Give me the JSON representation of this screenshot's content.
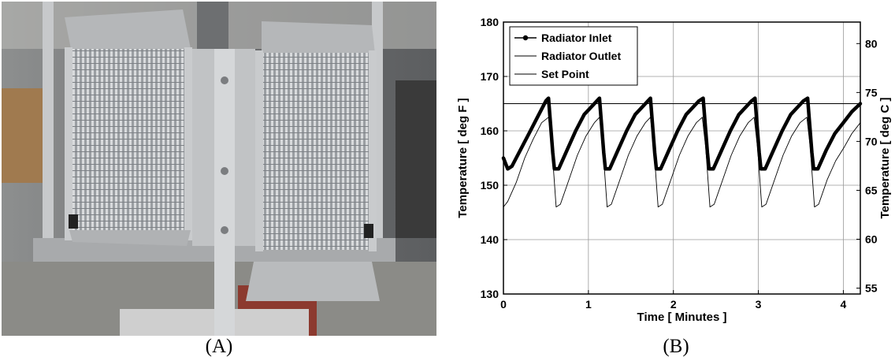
{
  "panels": {
    "a_label": "(A)",
    "b_label": "(B)"
  },
  "photo": {
    "icon": "radiator-photo-icon"
  },
  "chart_data": {
    "type": "line",
    "title": "",
    "xlabel": "Time [ Minutes ]",
    "ylabel": "Temperature [ deg F ]",
    "ylabel_right": "Temperature [ deg C ]",
    "xlim": [
      0,
      4.2
    ],
    "ylim": [
      130,
      180
    ],
    "ylim_right": [
      54.4,
      82.2
    ],
    "x_ticks": [
      "0",
      "1",
      "2",
      "3",
      "4"
    ],
    "y_ticks": [
      "130",
      "140",
      "150",
      "160",
      "170",
      "180"
    ],
    "y_ticks_right": [
      "55",
      "60",
      "65",
      "70",
      "75",
      "80"
    ],
    "grid": true,
    "legend_position": "top-left",
    "series": [
      {
        "name": "Radiator Inlet",
        "style": "thick",
        "points": [
          [
            0,
            155
          ],
          [
            0.05,
            153
          ],
          [
            0.1,
            153.5
          ],
          [
            0.2,
            156.5
          ],
          [
            0.3,
            159.5
          ],
          [
            0.4,
            162.5
          ],
          [
            0.5,
            165.5
          ],
          [
            0.53,
            166
          ],
          [
            0.58,
            156
          ],
          [
            0.6,
            153
          ],
          [
            0.65,
            153
          ],
          [
            0.75,
            156.5
          ],
          [
            0.85,
            160
          ],
          [
            0.95,
            163
          ],
          [
            1.1,
            165.5
          ],
          [
            1.13,
            166
          ],
          [
            1.18,
            156
          ],
          [
            1.2,
            153
          ],
          [
            1.25,
            153
          ],
          [
            1.35,
            156.5
          ],
          [
            1.45,
            160
          ],
          [
            1.55,
            163
          ],
          [
            1.7,
            165.5
          ],
          [
            1.73,
            166
          ],
          [
            1.78,
            156
          ],
          [
            1.8,
            153
          ],
          [
            1.85,
            153
          ],
          [
            1.95,
            156.5
          ],
          [
            2.05,
            160
          ],
          [
            2.15,
            163
          ],
          [
            2.3,
            165.5
          ],
          [
            2.35,
            166
          ],
          [
            2.4,
            156
          ],
          [
            2.42,
            153
          ],
          [
            2.47,
            153
          ],
          [
            2.57,
            156.5
          ],
          [
            2.67,
            160
          ],
          [
            2.77,
            163
          ],
          [
            2.92,
            165.5
          ],
          [
            2.96,
            166
          ],
          [
            3.01,
            156
          ],
          [
            3.03,
            153
          ],
          [
            3.08,
            153
          ],
          [
            3.18,
            156.5
          ],
          [
            3.28,
            160
          ],
          [
            3.38,
            163
          ],
          [
            3.53,
            165.5
          ],
          [
            3.58,
            166
          ],
          [
            3.63,
            156
          ],
          [
            3.65,
            153
          ],
          [
            3.7,
            153
          ],
          [
            3.8,
            156.5
          ],
          [
            3.9,
            159.5
          ],
          [
            4.0,
            161.5
          ],
          [
            4.1,
            163.5
          ],
          [
            4.2,
            165
          ]
        ]
      },
      {
        "name": "Radiator Outlet",
        "style": "thin",
        "points": [
          [
            0,
            146
          ],
          [
            0.05,
            147
          ],
          [
            0.15,
            150.5
          ],
          [
            0.25,
            155
          ],
          [
            0.35,
            158.5
          ],
          [
            0.45,
            161.5
          ],
          [
            0.53,
            162.5
          ],
          [
            0.57,
            157
          ],
          [
            0.62,
            146
          ],
          [
            0.67,
            146.5
          ],
          [
            0.77,
            151
          ],
          [
            0.87,
            155.5
          ],
          [
            0.97,
            159
          ],
          [
            1.07,
            161.5
          ],
          [
            1.13,
            162.5
          ],
          [
            1.17,
            157
          ],
          [
            1.22,
            146
          ],
          [
            1.27,
            146.5
          ],
          [
            1.37,
            151
          ],
          [
            1.47,
            155.5
          ],
          [
            1.57,
            159
          ],
          [
            1.67,
            161.5
          ],
          [
            1.73,
            162.5
          ],
          [
            1.77,
            157
          ],
          [
            1.82,
            146
          ],
          [
            1.87,
            146.5
          ],
          [
            1.97,
            151
          ],
          [
            2.07,
            155.5
          ],
          [
            2.17,
            159
          ],
          [
            2.27,
            161.5
          ],
          [
            2.34,
            162.5
          ],
          [
            2.38,
            157
          ],
          [
            2.43,
            146
          ],
          [
            2.48,
            146.5
          ],
          [
            2.58,
            151
          ],
          [
            2.68,
            155.5
          ],
          [
            2.78,
            159
          ],
          [
            2.88,
            161.5
          ],
          [
            2.95,
            162.5
          ],
          [
            2.99,
            157
          ],
          [
            3.04,
            146
          ],
          [
            3.09,
            146.5
          ],
          [
            3.19,
            151
          ],
          [
            3.29,
            155.5
          ],
          [
            3.39,
            159
          ],
          [
            3.49,
            161.5
          ],
          [
            3.57,
            162.5
          ],
          [
            3.61,
            157
          ],
          [
            3.66,
            146
          ],
          [
            3.71,
            146.5
          ],
          [
            3.81,
            151
          ],
          [
            3.91,
            154.5
          ],
          [
            4.01,
            157
          ],
          [
            4.1,
            159.5
          ],
          [
            4.2,
            161.5
          ]
        ]
      },
      {
        "name": "Set Point",
        "style": "thin",
        "points": [
          [
            0,
            165
          ],
          [
            4.2,
            165
          ]
        ]
      }
    ]
  }
}
